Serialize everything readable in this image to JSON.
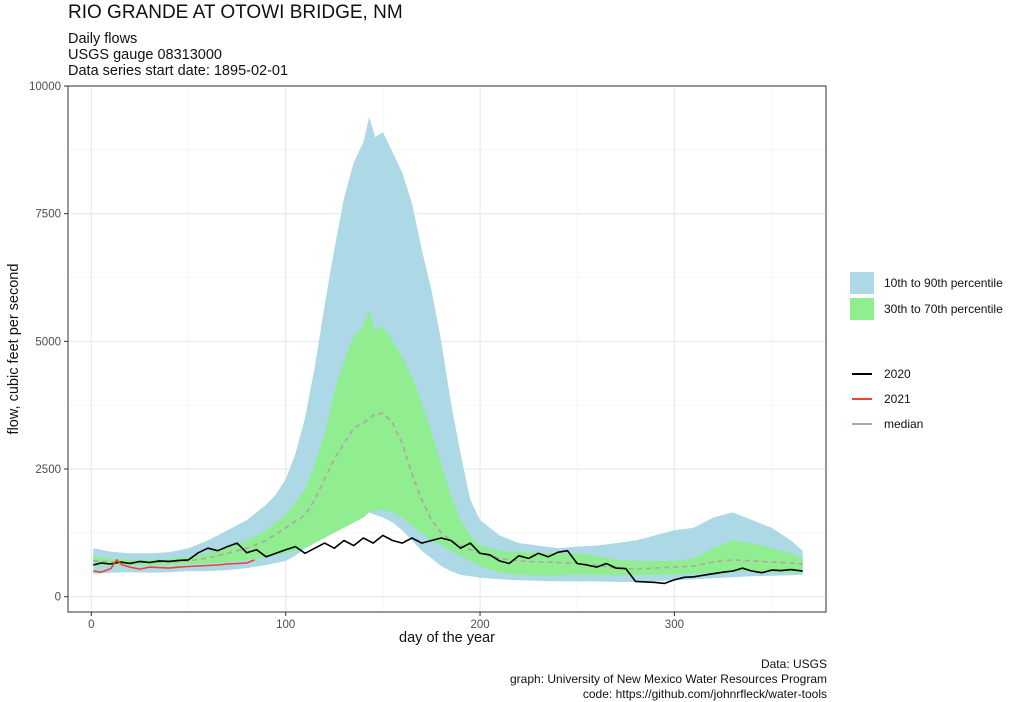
{
  "header": {
    "title": "RIO GRANDE AT OTOWI BRIDGE, NM",
    "subtitle_lines": [
      "Daily flows",
      "USGS gauge  08313000",
      "Data series start date:  1895-02-01"
    ]
  },
  "caption": {
    "lines": [
      "Data: USGS",
      "graph: University of New Mexico Water Resources Program",
      "code: https://github.com/johnrfleck/water-tools"
    ]
  },
  "colors": {
    "band_10_90": "#add8e6",
    "band_30_70": "#90ee90",
    "line_2020": "#000000",
    "line_2021": "#e8472f",
    "median": "#b4a0ac",
    "grid": "#ebebeb",
    "panel_border": "#333333"
  },
  "chart_data": {
    "type": "area",
    "xlabel": "day of the year",
    "ylabel": "flow, cubic feet per second",
    "xlim": [
      -12,
      378
    ],
    "ylim": [
      -300,
      10000
    ],
    "xticks": [
      0,
      100,
      200,
      300
    ],
    "yticks": [
      0,
      2500,
      5000,
      7500,
      10000
    ],
    "grid": true,
    "legend_position": "right",
    "legend_bands": [
      "10th to 90th percentile",
      "30th to 70th percentile"
    ],
    "legend_lines": [
      "2020",
      "2021",
      "median"
    ],
    "series": [
      {
        "name": "10th to 90th percentile",
        "kind": "band",
        "x": [
          1,
          10,
          20,
          30,
          40,
          50,
          60,
          70,
          80,
          90,
          95,
          100,
          105,
          110,
          115,
          120,
          125,
          130,
          135,
          140,
          143,
          146,
          150,
          155,
          160,
          165,
          170,
          175,
          180,
          185,
          190,
          195,
          200,
          210,
          220,
          230,
          240,
          250,
          260,
          270,
          280,
          290,
          300,
          310,
          320,
          330,
          340,
          350,
          360,
          366
        ],
        "low": [
          450,
          470,
          480,
          470,
          480,
          500,
          500,
          520,
          560,
          620,
          660,
          700,
          800,
          950,
          1100,
          1250,
          1400,
          1500,
          1550,
          1600,
          1650,
          1600,
          1550,
          1450,
          1300,
          1100,
          900,
          750,
          600,
          500,
          430,
          400,
          370,
          340,
          320,
          310,
          300,
          300,
          300,
          290,
          290,
          300,
          320,
          340,
          360,
          380,
          400,
          410,
          420,
          430
        ],
        "high": [
          950,
          880,
          850,
          850,
          870,
          950,
          1100,
          1300,
          1500,
          1800,
          2000,
          2300,
          2800,
          3500,
          4500,
          5700,
          6800,
          7800,
          8500,
          8900,
          9400,
          9000,
          9100,
          8700,
          8300,
          7700,
          6800,
          6000,
          5000,
          3800,
          2800,
          1900,
          1500,
          1200,
          1050,
          1000,
          950,
          980,
          1000,
          1050,
          1100,
          1200,
          1300,
          1350,
          1550,
          1650,
          1500,
          1350,
          1100,
          900
        ]
      },
      {
        "name": "30th to 70th percentile",
        "kind": "band",
        "x": [
          1,
          10,
          20,
          30,
          40,
          50,
          60,
          70,
          80,
          90,
          100,
          110,
          115,
          120,
          125,
          130,
          135,
          140,
          143,
          146,
          150,
          155,
          160,
          165,
          170,
          175,
          180,
          185,
          190,
          195,
          200,
          210,
          220,
          230,
          240,
          250,
          260,
          270,
          280,
          290,
          300,
          310,
          320,
          330,
          340,
          350,
          360,
          366
        ],
        "low": [
          600,
          620,
          620,
          620,
          630,
          640,
          650,
          680,
          720,
          780,
          850,
          950,
          1050,
          1150,
          1250,
          1350,
          1450,
          1550,
          1650,
          1700,
          1700,
          1650,
          1550,
          1400,
          1250,
          1100,
          1000,
          900,
          800,
          700,
          600,
          480,
          430,
          420,
          420,
          430,
          430,
          420,
          420,
          430,
          440,
          450,
          470,
          500,
          500,
          480,
          470,
          470
        ],
        "high": [
          780,
          740,
          720,
          720,
          740,
          780,
          850,
          950,
          1100,
          1300,
          1600,
          2100,
          2600,
          3200,
          4000,
          4600,
          5100,
          5300,
          5600,
          5200,
          5300,
          5000,
          4700,
          4300,
          3800,
          3200,
          2600,
          2000,
          1500,
          1200,
          1000,
          900,
          880,
          860,
          850,
          850,
          800,
          720,
          700,
          700,
          700,
          750,
          950,
          1100,
          1050,
          950,
          850,
          750
        ]
      },
      {
        "name": "median",
        "kind": "line",
        "dashed": true,
        "x": [
          1,
          10,
          20,
          30,
          40,
          50,
          60,
          70,
          80,
          90,
          100,
          110,
          115,
          120,
          125,
          130,
          135,
          140,
          145,
          150,
          155,
          160,
          165,
          170,
          175,
          180,
          185,
          190,
          195,
          200,
          210,
          220,
          230,
          240,
          250,
          260,
          270,
          280,
          290,
          300,
          310,
          320,
          330,
          340,
          350,
          360,
          366
        ],
        "y": [
          700,
          680,
          670,
          670,
          680,
          700,
          760,
          850,
          950,
          1100,
          1350,
          1600,
          1900,
          2300,
          2700,
          3000,
          3300,
          3400,
          3550,
          3600,
          3400,
          3000,
          2400,
          1900,
          1500,
          1250,
          1100,
          1000,
          920,
          850,
          750,
          700,
          680,
          670,
          650,
          620,
          560,
          540,
          560,
          580,
          600,
          680,
          720,
          700,
          680,
          660,
          640
        ]
      },
      {
        "name": "2020",
        "kind": "line",
        "x": [
          1,
          5,
          10,
          15,
          20,
          25,
          30,
          35,
          40,
          45,
          50,
          55,
          60,
          65,
          70,
          75,
          80,
          85,
          90,
          95,
          100,
          105,
          110,
          115,
          120,
          125,
          130,
          135,
          140,
          145,
          150,
          155,
          160,
          165,
          170,
          175,
          180,
          185,
          190,
          195,
          200,
          205,
          210,
          215,
          220,
          225,
          230,
          235,
          240,
          245,
          250,
          255,
          260,
          265,
          270,
          275,
          280,
          285,
          290,
          295,
          300,
          305,
          310,
          315,
          320,
          325,
          330,
          335,
          340,
          345,
          350,
          355,
          360,
          366
        ],
        "y": [
          620,
          660,
          640,
          680,
          650,
          690,
          670,
          700,
          690,
          710,
          720,
          860,
          950,
          900,
          980,
          1050,
          860,
          920,
          780,
          850,
          920,
          980,
          850,
          950,
          1050,
          950,
          1100,
          1000,
          1150,
          1050,
          1200,
          1100,
          1050,
          1150,
          1050,
          1100,
          1150,
          1100,
          950,
          1050,
          850,
          820,
          700,
          650,
          800,
          750,
          850,
          780,
          870,
          900,
          650,
          620,
          580,
          650,
          560,
          550,
          300,
          290,
          280,
          260,
          330,
          380,
          390,
          420,
          450,
          480,
          500,
          560,
          500,
          470,
          520,
          510,
          530,
          500
        ]
      },
      {
        "name": "2021",
        "kind": "line",
        "x": [
          1,
          5,
          10,
          13,
          16,
          20,
          25,
          30,
          35,
          40,
          45,
          50,
          55,
          60,
          65,
          70,
          75,
          80,
          84
        ],
        "y": [
          500,
          480,
          550,
          720,
          620,
          580,
          540,
          580,
          570,
          560,
          580,
          590,
          600,
          610,
          620,
          640,
          650,
          660,
          720
        ]
      }
    ]
  }
}
